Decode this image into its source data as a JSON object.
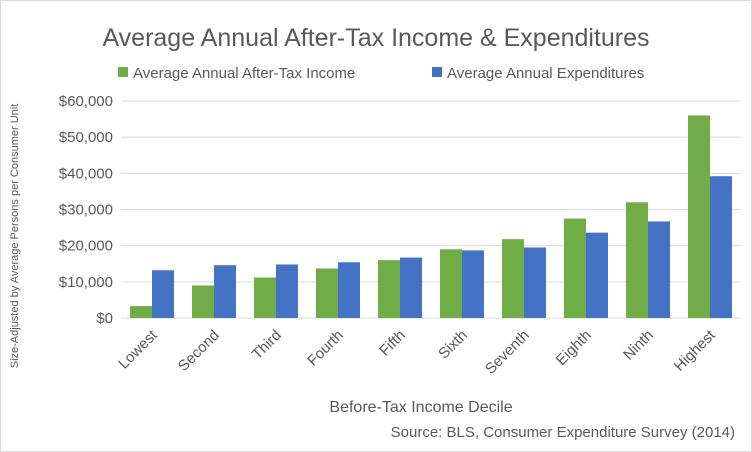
{
  "colors": {
    "income": "#70ad47",
    "expenditures": "#4472c4",
    "grid": "#d9d9d9",
    "text": "#595959"
  },
  "chart_data": {
    "type": "bar",
    "title": "Average Annual After-Tax Income & Expenditures",
    "xlabel": "Before-Tax Income Decile",
    "ylabel": "Size-Adjusted by Average Persons per Consumer Unit",
    "source": "Source: BLS, Consumer Expenditure Survey (2014)",
    "categories": [
      "Lowest",
      "Second",
      "Third",
      "Fourth",
      "Fifth",
      "Sixth",
      "Seventh",
      "Eighth",
      "Ninth",
      "Highest"
    ],
    "series": [
      {
        "name": "Average Annual After-Tax Income",
        "values": [
          3300,
          9000,
          11200,
          13700,
          16000,
          19000,
          21800,
          27500,
          32000,
          56000
        ]
      },
      {
        "name": "Average Annual Expenditures",
        "values": [
          13200,
          14600,
          14800,
          15400,
          16700,
          18700,
          19500,
          23600,
          26700,
          39200
        ]
      }
    ],
    "yticks": [
      "$0",
      "$10,000",
      "$20,000",
      "$30,000",
      "$40,000",
      "$50,000",
      "$60,000"
    ],
    "ylim": [
      0,
      60000
    ],
    "grid": true,
    "legend": "top"
  }
}
